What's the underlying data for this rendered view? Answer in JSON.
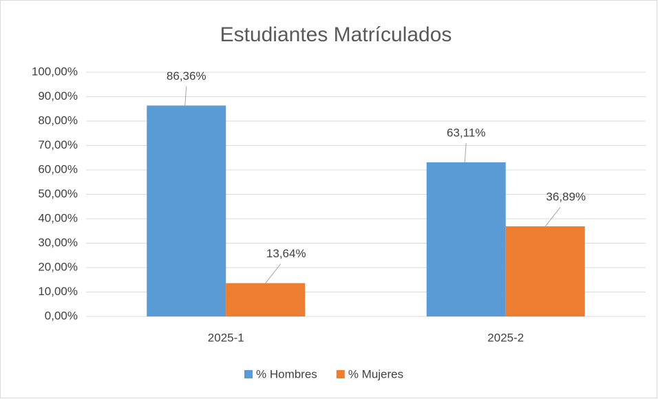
{
  "chart_data": {
    "type": "bar",
    "title": "Estudiantes Matrículados",
    "categories": [
      "2025-1",
      "2025-2"
    ],
    "series": [
      {
        "name": "% Hombres",
        "color": "#5b9bd5",
        "values": [
          86.36,
          63.11
        ],
        "value_labels": [
          "86,36%",
          "63,11%"
        ]
      },
      {
        "name": "% Mujeres",
        "color": "#ed7d31",
        "values": [
          13.64,
          36.89
        ],
        "value_labels": [
          "13,64%",
          "36,89%"
        ]
      }
    ],
    "ylim": [
      0,
      100
    ],
    "yticks": [
      {
        "value": 0,
        "label": "0,00%"
      },
      {
        "value": 10,
        "label": "10,00%"
      },
      {
        "value": 20,
        "label": "20,00%"
      },
      {
        "value": 30,
        "label": "30,00%"
      },
      {
        "value": 40,
        "label": "40,00%"
      },
      {
        "value": 50,
        "label": "50,00%"
      },
      {
        "value": 60,
        "label": "60,00%"
      },
      {
        "value": 70,
        "label": "70,00%"
      },
      {
        "value": 80,
        "label": "80,00%"
      },
      {
        "value": 90,
        "label": "90,00%"
      },
      {
        "value": 100,
        "label": "100,00%"
      }
    ],
    "grid": true,
    "legend": "bottom"
  }
}
